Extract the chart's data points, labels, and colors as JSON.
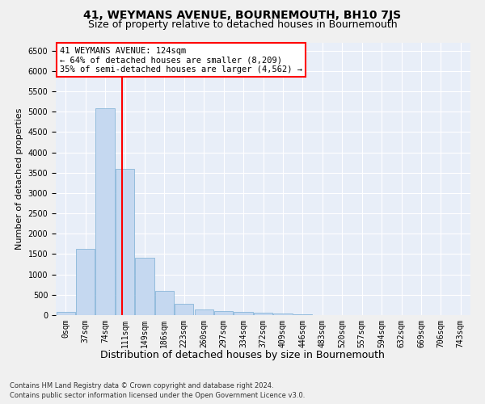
{
  "title": "41, WEYMANS AVENUE, BOURNEMOUTH, BH10 7JS",
  "subtitle": "Size of property relative to detached houses in Bournemouth",
  "xlabel": "Distribution of detached houses by size in Bournemouth",
  "ylabel": "Number of detached properties",
  "footer1": "Contains HM Land Registry data © Crown copyright and database right 2024.",
  "footer2": "Contains public sector information licensed under the Open Government Licence v3.0.",
  "bar_labels": [
    "0sqm",
    "37sqm",
    "74sqm",
    "111sqm",
    "149sqm",
    "186sqm",
    "223sqm",
    "260sqm",
    "297sqm",
    "334sqm",
    "372sqm",
    "409sqm",
    "446sqm",
    "483sqm",
    "520sqm",
    "557sqm",
    "594sqm",
    "632sqm",
    "669sqm",
    "706sqm",
    "743sqm"
  ],
  "bar_values": [
    75,
    1625,
    5075,
    3600,
    1400,
    590,
    285,
    145,
    100,
    75,
    55,
    30,
    15,
    5,
    3,
    2,
    1,
    1,
    1,
    0,
    0
  ],
  "bar_color": "#c5d8f0",
  "bar_edgecolor": "#7aadd4",
  "property_label": "41 WEYMANS AVENUE: 124sqm",
  "pct_smaller": 64,
  "n_smaller": 8209,
  "pct_larger_semi": 35,
  "n_larger_semi": 4562,
  "ylim": [
    0,
    6700
  ],
  "yticks": [
    0,
    500,
    1000,
    1500,
    2000,
    2500,
    3000,
    3500,
    4000,
    4500,
    5000,
    5500,
    6000,
    6500
  ],
  "plot_bg_color": "#e8eef8",
  "grid_color": "#ffffff",
  "fig_bg_color": "#f0f0f0",
  "title_fontsize": 10,
  "subtitle_fontsize": 9,
  "ylabel_fontsize": 8,
  "xlabel_fontsize": 9,
  "tick_fontsize": 7,
  "footer_fontsize": 6,
  "annot_fontsize": 7.5
}
